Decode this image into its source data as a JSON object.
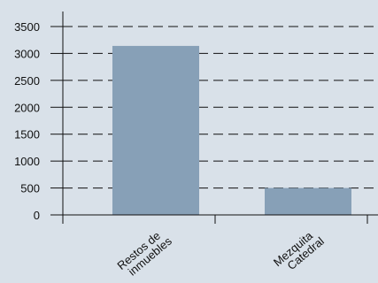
{
  "chart_data": {
    "type": "bar",
    "categories": [
      [
        "Restos de",
        "inmuebles"
      ],
      [
        "Mezquita",
        "Catedral"
      ]
    ],
    "values": [
      3140,
      500
    ],
    "yticks": [
      "0",
      "500",
      "1000",
      "1500",
      "2000",
      "2500",
      "3000",
      "3500"
    ],
    "ylim": [
      0,
      3500
    ],
    "grid": "dashed-horizontal",
    "colors": {
      "background": "#d9e1e9",
      "bar": "#87a0b7",
      "axis": "#111111",
      "grid": "#111111"
    }
  }
}
